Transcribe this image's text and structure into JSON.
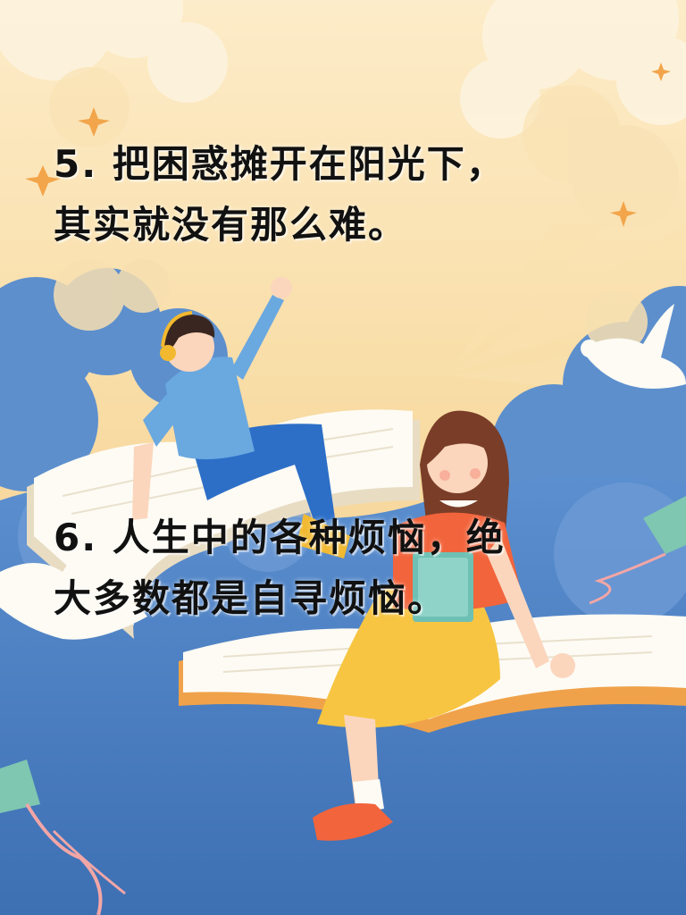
{
  "quote_5": {
    "line1": "5. 把困惑摊开在阳光下，",
    "line2": "其实就没有那么难。"
  },
  "quote_6": {
    "line1": "6. 人生中的各种烦恼，绝",
    "line2": "大多数都是自寻烦恼。"
  },
  "colors": {
    "sky_top": "#fbe7c2",
    "sky_bottom": "#f6d699",
    "cloud_blue": "#4a7fc0",
    "cloud_cream": "#fdf1d8",
    "boy_shirt": "#6aa8e0",
    "boy_pants": "#2d6fc7",
    "girl_top": "#f2643c",
    "girl_skirt": "#f7c541",
    "text": "#111111"
  }
}
